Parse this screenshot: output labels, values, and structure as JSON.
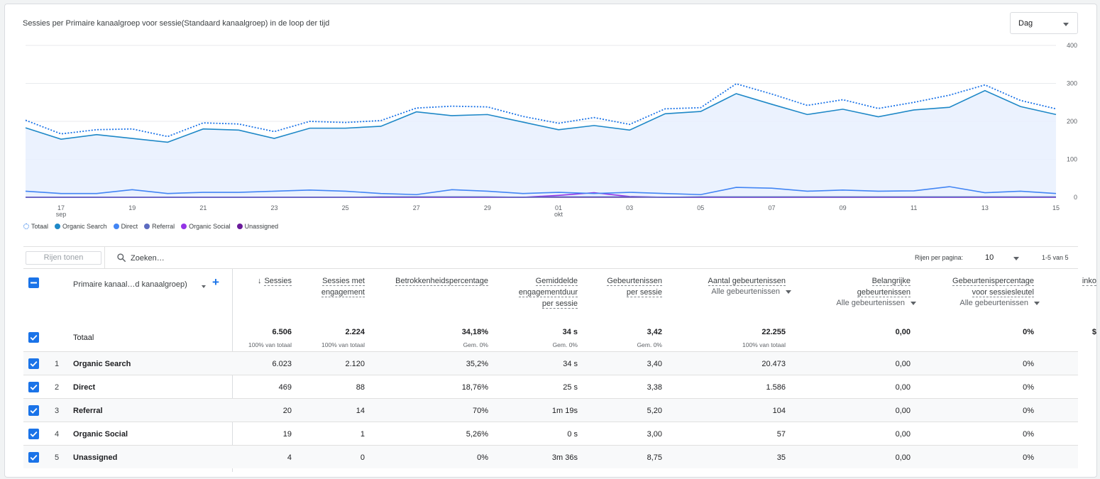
{
  "chart": {
    "title": "Sessies per Primaire kanaalgroep voor sessie(Standaard kanaalgroep) in de loop der tijd",
    "granularity": "Dag",
    "y_ticks": [
      "400",
      "300",
      "200",
      "100",
      "0"
    ],
    "x_ticks": [
      {
        "day": "17",
        "month": "sep"
      },
      {
        "day": "19",
        "month": ""
      },
      {
        "day": "21",
        "month": ""
      },
      {
        "day": "23",
        "month": ""
      },
      {
        "day": "25",
        "month": ""
      },
      {
        "day": "27",
        "month": ""
      },
      {
        "day": "29",
        "month": ""
      },
      {
        "day": "01",
        "month": "okt"
      },
      {
        "day": "03",
        "month": ""
      },
      {
        "day": "05",
        "month": ""
      },
      {
        "day": "07",
        "month": ""
      },
      {
        "day": "09",
        "month": ""
      },
      {
        "day": "11",
        "month": ""
      },
      {
        "day": "13",
        "month": ""
      },
      {
        "day": "15",
        "month": ""
      }
    ]
  },
  "chart_data": {
    "type": "line",
    "x": [
      "16 sep",
      "17 sep",
      "18 sep",
      "19 sep",
      "20 sep",
      "21 sep",
      "22 sep",
      "23 sep",
      "24 sep",
      "25 sep",
      "26 sep",
      "27 sep",
      "28 sep",
      "29 sep",
      "30 sep",
      "01 okt",
      "02 okt",
      "03 okt",
      "04 okt",
      "05 okt",
      "06 okt",
      "07 okt",
      "08 okt",
      "09 okt",
      "10 okt",
      "11 okt",
      "12 okt",
      "13 okt",
      "14 okt",
      "15 okt"
    ],
    "ylim": [
      0,
      400
    ],
    "grid": true,
    "legend_position": "bottom-left",
    "series": [
      {
        "name": "Totaal",
        "color": "#1a73e8",
        "style": "dotted",
        "values": [
          203,
          167,
          178,
          180,
          160,
          196,
          193,
          173,
          200,
          197,
          202,
          235,
          240,
          238,
          213,
          195,
          210,
          192,
          233,
          236,
          299,
          272,
          242,
          257,
          234,
          250,
          269,
          296,
          255,
          233
        ]
      },
      {
        "name": "Organic Search",
        "color": "#1e88c7",
        "style": "solid",
        "values": [
          183,
          153,
          165,
          155,
          145,
          180,
          177,
          155,
          182,
          182,
          187,
          225,
          215,
          218,
          198,
          178,
          189,
          177,
          220,
          226,
          273,
          245,
          218,
          232,
          212,
          230,
          237,
          281,
          239,
          218
        ]
      },
      {
        "name": "Direct",
        "color": "#4285f4",
        "style": "solid",
        "values": [
          16,
          10,
          10,
          20,
          10,
          13,
          13,
          16,
          19,
          16,
          10,
          7,
          20,
          16,
          10,
          13,
          10,
          13,
          10,
          7,
          26,
          24,
          16,
          19,
          16,
          17,
          28,
          12,
          16,
          10
        ]
      },
      {
        "name": "Referral",
        "color": "#5c6bc0",
        "style": "solid",
        "values": [
          0,
          0,
          0,
          0,
          0,
          0,
          0,
          0,
          0,
          0,
          1,
          1,
          1,
          1,
          0,
          1,
          1,
          1,
          0,
          1,
          1,
          1,
          1,
          1,
          1,
          1,
          1,
          1,
          1,
          1
        ]
      },
      {
        "name": "Organic Social",
        "color": "#9334e6",
        "style": "solid",
        "values": [
          0,
          0,
          0,
          0,
          0,
          0,
          0,
          0,
          0,
          0,
          0,
          0,
          0,
          0,
          0,
          5,
          12,
          2,
          0,
          0,
          0,
          0,
          0,
          0,
          0,
          0,
          0,
          0,
          0,
          0
        ]
      },
      {
        "name": "Unassigned",
        "color": "#6a1b9a",
        "style": "solid",
        "values": [
          0,
          0,
          0,
          0,
          0,
          0,
          0,
          0,
          0,
          0,
          0,
          0,
          0,
          0,
          0,
          0,
          0,
          0,
          0,
          0,
          0,
          0,
          0,
          0,
          0,
          0,
          0,
          0,
          0,
          0
        ]
      }
    ]
  },
  "legend": [
    {
      "label": "Totaal",
      "color": "#1a73e8",
      "icon": "dotted-ring-icon"
    },
    {
      "label": "Organic Search",
      "color": "#1e88c7",
      "icon": "dot-icon"
    },
    {
      "label": "Direct",
      "color": "#4285f4",
      "icon": "dot-icon"
    },
    {
      "label": "Referral",
      "color": "#5c6bc0",
      "icon": "dot-icon"
    },
    {
      "label": "Organic Social",
      "color": "#9334e6",
      "icon": "dot-icon"
    },
    {
      "label": "Unassigned",
      "color": "#6a1b9a",
      "icon": "dot-icon"
    }
  ],
  "toolbar": {
    "rows_button": "Rijen tonen",
    "search_placeholder": "Zoeken…",
    "rows_per_page_label": "Rijen per pagina:",
    "rows_per_page_value": "10",
    "pager": "1-5 van 5"
  },
  "table": {
    "dimension_header": "Primaire kanaal…d kanaalgroep)",
    "columns": [
      {
        "l1": "Sessies",
        "l2": "",
        "l3": "",
        "sort": "desc",
        "filter": ""
      },
      {
        "l1": "Sessies met",
        "l2": "engagement",
        "l3": "",
        "filter": ""
      },
      {
        "l1": "Betrokkenheidspercentage",
        "l2": "",
        "l3": "",
        "filter": ""
      },
      {
        "l1": "Gemiddelde",
        "l2": "engagementduur",
        "l3": "per sessie",
        "filter": ""
      },
      {
        "l1": "Gebeurtenissen",
        "l2": "per sessie",
        "l3": "",
        "filter": ""
      },
      {
        "l1": "Aantal gebeurtenissen",
        "l2": "",
        "l3": "",
        "filter": "Alle gebeurtenissen"
      },
      {
        "l1": "Belangrijke",
        "l2": "gebeurtenissen",
        "l3": "",
        "filter": "Alle gebeurtenissen"
      },
      {
        "l1": "Gebeurtenispercentage",
        "l2": "voor sessiesleutel",
        "l3": "",
        "filter": "Alle gebeurtenissen"
      },
      {
        "l1": "inko",
        "l2": "",
        "l3": "",
        "filter": ""
      }
    ],
    "totals": {
      "label": "Totaal",
      "values": [
        "6.506",
        "2.224",
        "34,18%",
        "34 s",
        "3,42",
        "22.255",
        "0,00",
        "0%",
        "$"
      ],
      "subs": [
        "100% van totaal",
        "100% van totaal",
        "Gem. 0%",
        "Gem. 0%",
        "Gem. 0%",
        "100% van totaal",
        "",
        "",
        ""
      ]
    },
    "rows": [
      {
        "num": "1",
        "label": "Organic Search",
        "values": [
          "6.023",
          "2.120",
          "35,2%",
          "34 s",
          "3,40",
          "20.473",
          "0,00",
          "0%"
        ]
      },
      {
        "num": "2",
        "label": "Direct",
        "values": [
          "469",
          "88",
          "18,76%",
          "25 s",
          "3,38",
          "1.586",
          "0,00",
          "0%"
        ]
      },
      {
        "num": "3",
        "label": "Referral",
        "values": [
          "20",
          "14",
          "70%",
          "1m 19s",
          "5,20",
          "104",
          "0,00",
          "0%"
        ]
      },
      {
        "num": "4",
        "label": "Organic Social",
        "values": [
          "19",
          "1",
          "5,26%",
          "0 s",
          "3,00",
          "57",
          "0,00",
          "0%"
        ]
      },
      {
        "num": "5",
        "label": "Unassigned",
        "values": [
          "4",
          "0",
          "0%",
          "3m 36s",
          "8,75",
          "35",
          "0,00",
          "0%"
        ]
      }
    ]
  },
  "colors": {
    "accent": "#1a73e8",
    "area_fill": "#e8f0fe",
    "grid": "#e8eaed"
  }
}
